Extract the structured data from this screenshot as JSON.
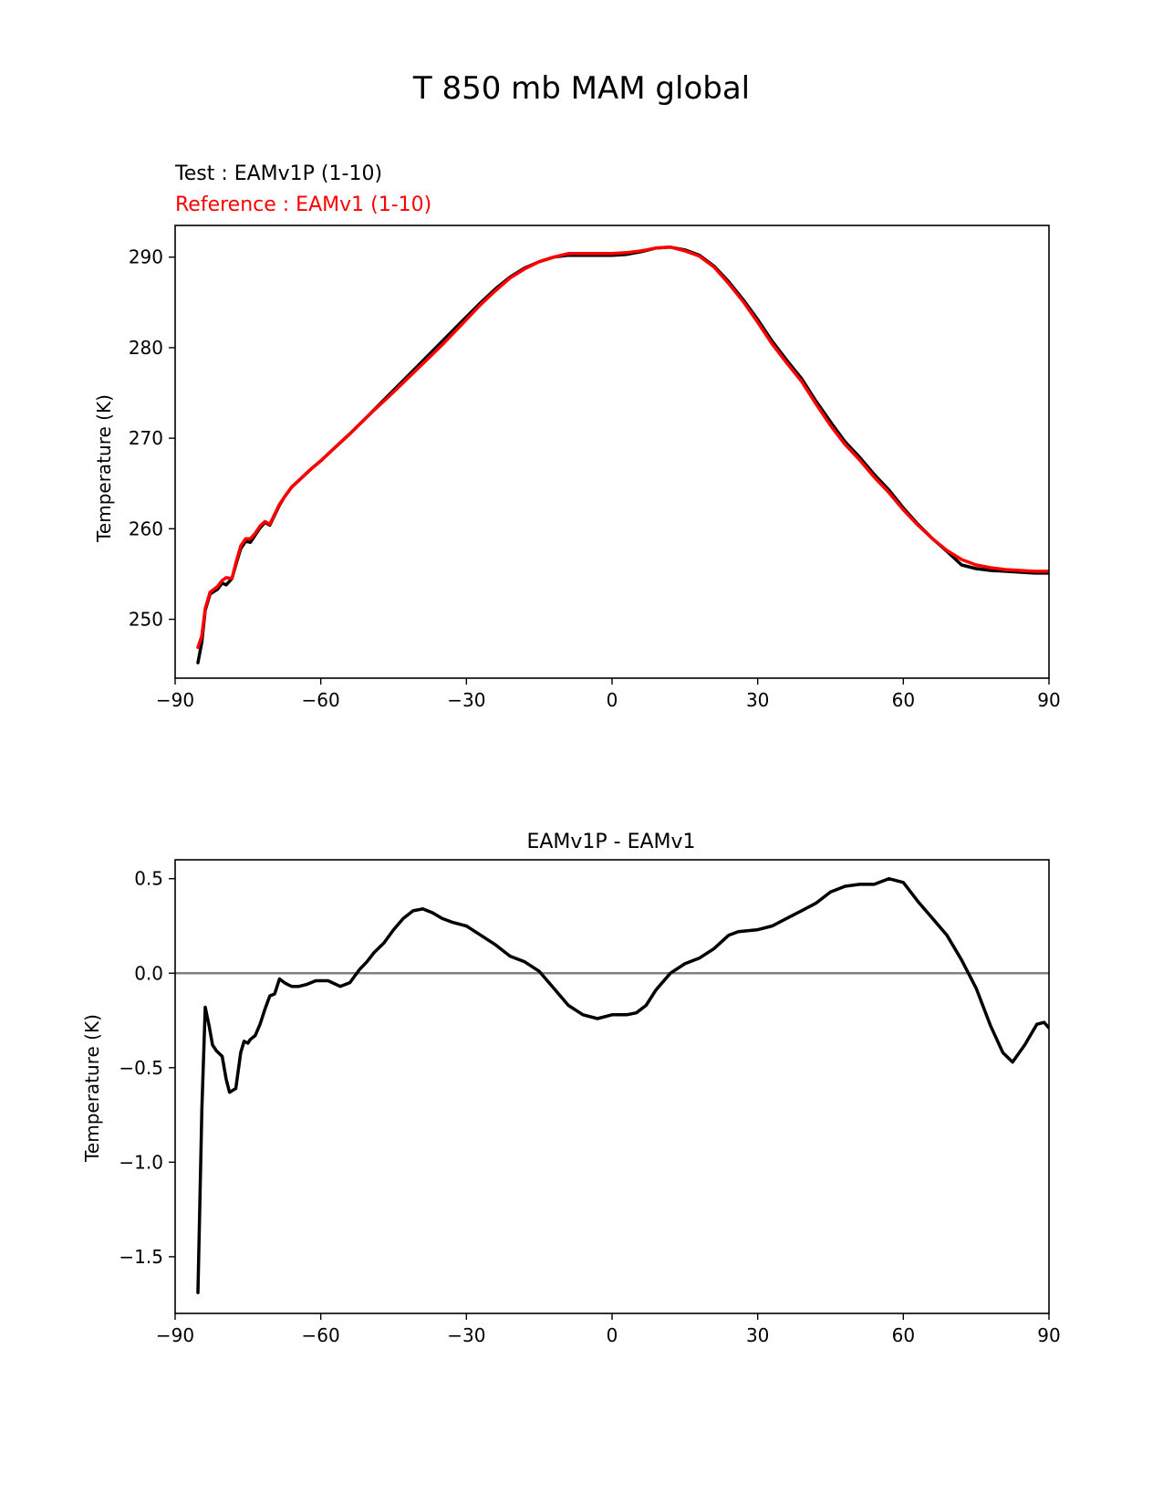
{
  "figure": {
    "title": "T 850 mb MAM global"
  },
  "chart_data": [
    {
      "type": "line",
      "title": "",
      "legend_text": [
        {
          "text": "Test : EAMv1P (1-10)",
          "color": "#000000"
        },
        {
          "text": "Reference : EAMv1 (1-10)",
          "color": "#ff0000"
        }
      ],
      "xlabel": "",
      "ylabel": "Temperature (K)",
      "xlim": [
        -90,
        90
      ],
      "ylim": [
        243.5,
        293.5
      ],
      "xticks": [
        -90,
        -60,
        -30,
        0,
        30,
        60,
        90
      ],
      "xtick_labels": [
        "−90",
        "−60",
        "−30",
        "0",
        "30",
        "60",
        "90"
      ],
      "yticks": [
        250,
        260,
        270,
        280,
        290
      ],
      "ytick_labels": [
        "250",
        "260",
        "270",
        "280",
        "290"
      ],
      "grid": false,
      "series": [
        {
          "name": "Test : EAMv1P (1-10)",
          "color": "#000000",
          "x": [
            -85.3,
            -84.5,
            -83.8,
            -82.8,
            -81.3,
            -80.3,
            -79.5,
            -78.3,
            -77.5,
            -76.5,
            -75.5,
            -74.5,
            -73.5,
            -72.5,
            -71.5,
            -70.5,
            -69.5,
            -68.5,
            -67.5,
            -66,
            -64,
            -62,
            -60,
            -57,
            -54,
            -50,
            -45,
            -40,
            -35,
            -30,
            -27,
            -24,
            -21,
            -18,
            -15,
            -12,
            -9,
            -6,
            -3,
            0,
            3,
            6,
            9,
            12,
            15,
            18,
            21,
            24,
            27,
            30,
            33,
            36,
            39,
            42,
            45,
            48,
            51,
            54,
            57,
            60,
            63,
            66,
            69,
            72,
            75,
            78,
            81,
            84,
            87,
            90
          ],
          "values": [
            245.2,
            247.5,
            251.0,
            252.8,
            253.3,
            254.0,
            253.8,
            254.5,
            256.0,
            257.8,
            258.6,
            258.5,
            259.3,
            260.1,
            260.7,
            260.4,
            261.5,
            262.6,
            263.5,
            264.6,
            265.6,
            266.6,
            267.5,
            269.0,
            270.5,
            272.6,
            275.3,
            278.0,
            280.7,
            283.4,
            285.0,
            286.5,
            287.8,
            288.8,
            289.5,
            290.0,
            290.2,
            290.2,
            290.2,
            290.2,
            290.3,
            290.6,
            291.0,
            291.1,
            290.8,
            290.2,
            289.0,
            287.3,
            285.3,
            283.1,
            280.7,
            278.6,
            276.6,
            274.1,
            271.8,
            269.6,
            267.9,
            266.0,
            264.3,
            262.3,
            260.5,
            258.9,
            257.5,
            256.0,
            255.6,
            255.4,
            255.3,
            255.2,
            255.1,
            255.1
          ]
        },
        {
          "name": "Reference : EAMv1 (1-10)",
          "color": "#ff0000",
          "x": [
            -85.3,
            -84.5,
            -83.8,
            -82.8,
            -81.3,
            -80.3,
            -79.5,
            -78.3,
            -77.5,
            -76.5,
            -75.5,
            -74.5,
            -73.5,
            -72.5,
            -71.5,
            -70.5,
            -69.5,
            -68.5,
            -67.5,
            -66,
            -64,
            -62,
            -60,
            -57,
            -54,
            -50,
            -45,
            -40,
            -35,
            -30,
            -27,
            -24,
            -21,
            -18,
            -15,
            -12,
            -9,
            -6,
            -3,
            0,
            3,
            6,
            9,
            12,
            15,
            18,
            21,
            24,
            27,
            30,
            33,
            36,
            39,
            42,
            45,
            48,
            51,
            54,
            57,
            60,
            63,
            66,
            69,
            72,
            75,
            78,
            81,
            84,
            87,
            90
          ],
          "values": [
            246.9,
            248.2,
            251.2,
            253.0,
            253.6,
            254.3,
            254.6,
            254.5,
            256.2,
            258.1,
            258.9,
            258.9,
            259.5,
            260.3,
            260.8,
            260.5,
            261.6,
            262.7,
            263.5,
            264.6,
            265.6,
            266.6,
            267.5,
            269.0,
            270.5,
            272.6,
            275.1,
            277.7,
            280.3,
            283.1,
            284.8,
            286.3,
            287.7,
            288.7,
            289.5,
            290.0,
            290.4,
            290.4,
            290.4,
            290.4,
            290.5,
            290.7,
            291.0,
            291.1,
            290.7,
            290.1,
            288.9,
            287.1,
            285.1,
            282.8,
            280.4,
            278.3,
            276.3,
            273.8,
            271.4,
            269.3,
            267.6,
            265.7,
            264.0,
            262.1,
            260.4,
            258.9,
            257.6,
            256.6,
            256.0,
            255.7,
            255.5,
            255.4,
            255.3,
            255.3
          ]
        }
      ]
    },
    {
      "type": "line",
      "title": "EAMv1P - EAMv1",
      "xlabel": "",
      "ylabel": "Temperature (K)",
      "xlim": [
        -90,
        90
      ],
      "ylim": [
        -1.8,
        0.6
      ],
      "xticks": [
        -90,
        -60,
        -30,
        0,
        30,
        60,
        90
      ],
      "xtick_labels": [
        "−90",
        "−60",
        "−30",
        "0",
        "30",
        "60",
        "90"
      ],
      "yticks": [
        0.5,
        0.0,
        -0.5,
        -1.0,
        -1.5
      ],
      "ytick_labels": [
        "0.5",
        "0.0",
        "−0.5",
        "−1.0",
        "−1.5"
      ],
      "grid": false,
      "reference_line": {
        "y": 0.0,
        "color": "#808080"
      },
      "series": [
        {
          "color": "#000000",
          "x": [
            -85.3,
            -84.5,
            -83.8,
            -83.0,
            -82.3,
            -81.5,
            -80.3,
            -79.5,
            -78.8,
            -77.5,
            -76.5,
            -75.8,
            -75.0,
            -74.5,
            -73.5,
            -72.5,
            -71.5,
            -70.5,
            -69.5,
            -68.5,
            -67.5,
            -66.8,
            -66.0,
            -64.5,
            -63,
            -61,
            -58.5,
            -56,
            -54,
            -52,
            -50.5,
            -49,
            -47,
            -45,
            -43,
            -41,
            -39,
            -37,
            -35,
            -33,
            -30,
            -27,
            -24,
            -21,
            -18,
            -15,
            -12,
            -9,
            -6,
            -3,
            0,
            3,
            5,
            7,
            9,
            12,
            15,
            18,
            21,
            24,
            26,
            30,
            33,
            36,
            39,
            42,
            45,
            48,
            51,
            54,
            57,
            60,
            63,
            66,
            69,
            72,
            75,
            78,
            80.5,
            82.5,
            85,
            87.5,
            89,
            90
          ],
          "values": [
            -1.69,
            -0.72,
            -0.18,
            -0.28,
            -0.38,
            -0.41,
            -0.44,
            -0.56,
            -0.63,
            -0.61,
            -0.42,
            -0.36,
            -0.37,
            -0.35,
            -0.33,
            -0.27,
            -0.19,
            -0.12,
            -0.11,
            -0.03,
            -0.05,
            -0.06,
            -0.07,
            -0.07,
            -0.06,
            -0.04,
            -0.04,
            -0.07,
            -0.05,
            0.02,
            0.06,
            0.11,
            0.16,
            0.23,
            0.29,
            0.33,
            0.34,
            0.32,
            0.29,
            0.27,
            0.25,
            0.2,
            0.15,
            0.09,
            0.06,
            0.01,
            -0.08,
            -0.17,
            -0.22,
            -0.24,
            -0.22,
            -0.22,
            -0.21,
            -0.17,
            -0.09,
            0.0,
            0.05,
            0.08,
            0.13,
            0.2,
            0.22,
            0.23,
            0.25,
            0.29,
            0.33,
            0.37,
            0.43,
            0.46,
            0.47,
            0.47,
            0.5,
            0.48,
            0.38,
            0.29,
            0.2,
            0.07,
            -0.08,
            -0.28,
            -0.42,
            -0.47,
            -0.38,
            -0.27,
            -0.26,
            -0.29
          ]
        }
      ]
    }
  ]
}
